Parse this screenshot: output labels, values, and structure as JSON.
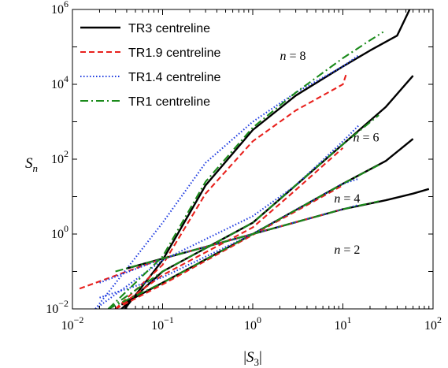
{
  "chart_data": {
    "type": "line",
    "title": "",
    "xlabel": "|S_3|",
    "ylabel": "S_n",
    "xscale": "log",
    "yscale": "log",
    "xlim": [
      0.01,
      100
    ],
    "ylim": [
      0.01,
      1000000
    ],
    "x_ticks": [
      {
        "value": 0.01,
        "base": "10",
        "exp": "−2"
      },
      {
        "value": 0.1,
        "base": "10",
        "exp": "−1"
      },
      {
        "value": 1,
        "base": "10",
        "exp": "0"
      },
      {
        "value": 10,
        "base": "10",
        "exp": "1"
      },
      {
        "value": 100,
        "base": "10",
        "exp": "2"
      }
    ],
    "y_ticks": [
      {
        "value": 0.01,
        "base": "10",
        "exp": "−2"
      },
      {
        "value": 1,
        "base": "10",
        "exp": "0"
      },
      {
        "value": 100,
        "base": "10",
        "exp": "2"
      },
      {
        "value": 10000,
        "base": "10",
        "exp": "4"
      },
      {
        "value": 1000000,
        "base": "10",
        "exp": "6"
      }
    ],
    "grid": false,
    "legend_position": "top-left",
    "annotations": [
      {
        "text": "n = 8",
        "x": 2.0,
        "y": 45000
      },
      {
        "text": "n = 6",
        "x": 13.0,
        "y": 300
      },
      {
        "text": "n = 4",
        "x": 8.0,
        "y": 7
      },
      {
        "text": "n = 2",
        "x": 8.0,
        "y": 0.3
      }
    ],
    "series": [
      {
        "name": "TR3 centreline",
        "color": "#000000",
        "dash": "solid",
        "curves": [
          {
            "n": 2,
            "points": [
              [
                0.04,
                0.12
              ],
              [
                0.1,
                0.22
              ],
              [
                1,
                1.0
              ],
              [
                10,
                4.6
              ],
              [
                30,
                8
              ],
              [
                60,
                12
              ],
              [
                90,
                16
              ]
            ]
          },
          {
            "n": 4,
            "points": [
              [
                0.035,
                0.013
              ],
              [
                0.1,
                0.05
              ],
              [
                1,
                1.0
              ],
              [
                10,
                22
              ],
              [
                30,
                90
              ],
              [
                60,
                350
              ]
            ]
          },
          {
            "n": 6,
            "points": [
              [
                0.035,
                0.01
              ],
              [
                0.1,
                0.1
              ],
              [
                1,
                2.0
              ],
              [
                3,
                20
              ],
              [
                10,
                250
              ],
              [
                30,
                2500
              ],
              [
                60,
                17000
              ]
            ]
          },
          {
            "n": 8,
            "points": [
              [
                0.038,
                0.01
              ],
              [
                0.1,
                0.2
              ],
              [
                0.3,
                20
              ],
              [
                1,
                600
              ],
              [
                3,
                5000
              ],
              [
                10,
                30000
              ],
              [
                20,
                80000
              ],
              [
                40,
                200000
              ],
              [
                55,
                1000000
              ]
            ]
          }
        ]
      },
      {
        "name": "TR1.9 centreline",
        "color": "#e8211d",
        "dash": "dashed",
        "curves": [
          {
            "n": 2,
            "points": [
              [
                0.012,
                0.035
              ],
              [
                0.1,
                0.22
              ],
              [
                1,
                1.0
              ],
              [
                10,
                4.6
              ]
            ]
          },
          {
            "n": 4,
            "points": [
              [
                0.03,
                0.01
              ],
              [
                0.1,
                0.045
              ],
              [
                1,
                0.95
              ],
              [
                10,
                20
              ]
            ]
          },
          {
            "n": 6,
            "points": [
              [
                0.03,
                0.01
              ],
              [
                0.1,
                0.08
              ],
              [
                1,
                1.5
              ],
              [
                3,
                15
              ],
              [
                10,
                200
              ]
            ]
          },
          {
            "n": 8,
            "points": [
              [
                0.03,
                0.01
              ],
              [
                0.1,
                0.15
              ],
              [
                0.3,
                12
              ],
              [
                1,
                300
              ],
              [
                3,
                2000
              ],
              [
                10,
                10000
              ],
              [
                11,
                20000
              ]
            ]
          }
        ]
      },
      {
        "name": "TR1.4 centreline",
        "color": "#1f3ce0",
        "dash": "dotted",
        "curves": [
          {
            "n": 2,
            "points": [
              [
                0.02,
                0.05
              ],
              [
                0.1,
                0.22
              ],
              [
                1,
                1.0
              ],
              [
                10,
                4.6
              ],
              [
                15,
                6
              ]
            ]
          },
          {
            "n": 4,
            "points": [
              [
                0.02,
                0.02
              ],
              [
                0.1,
                0.07
              ],
              [
                1,
                1.0
              ],
              [
                10,
                22
              ],
              [
                15,
                30
              ]
            ]
          },
          {
            "n": 6,
            "points": [
              [
                0.018,
                0.01
              ],
              [
                0.1,
                0.2
              ],
              [
                1,
                3
              ],
              [
                3,
                20
              ],
              [
                10,
                300
              ],
              [
                15,
                800
              ]
            ]
          },
          {
            "n": 8,
            "points": [
              [
                0.018,
                0.01
              ],
              [
                0.1,
                2
              ],
              [
                0.3,
                80
              ],
              [
                1,
                1000
              ],
              [
                3,
                6000
              ],
              [
                10,
                30000
              ],
              [
                15,
                60000
              ]
            ]
          }
        ]
      },
      {
        "name": "TR1 centreline",
        "color": "#1a8a1a",
        "dash": "dashdot",
        "curves": [
          {
            "n": 2,
            "points": [
              [
                0.03,
                0.1
              ],
              [
                0.1,
                0.22
              ],
              [
                1,
                1.0
              ],
              [
                10,
                4.6
              ],
              [
                25,
                7.5
              ]
            ]
          },
          {
            "n": 4,
            "points": [
              [
                0.025,
                0.01
              ],
              [
                0.1,
                0.05
              ],
              [
                1,
                1.0
              ],
              [
                10,
                22
              ],
              [
                25,
                70
              ]
            ]
          },
          {
            "n": 6,
            "points": [
              [
                0.025,
                0.01
              ],
              [
                0.1,
                0.1
              ],
              [
                1,
                2
              ],
              [
                3,
                20
              ],
              [
                10,
                250
              ],
              [
                25,
                1500
              ]
            ]
          },
          {
            "n": 8,
            "points": [
              [
                0.025,
                0.01
              ],
              [
                0.1,
                0.25
              ],
              [
                0.3,
                25
              ],
              [
                1,
                700
              ],
              [
                3,
                6000
              ],
              [
                10,
                50000
              ],
              [
                20,
                150000
              ],
              [
                28,
                250000
              ]
            ]
          }
        ]
      }
    ]
  }
}
